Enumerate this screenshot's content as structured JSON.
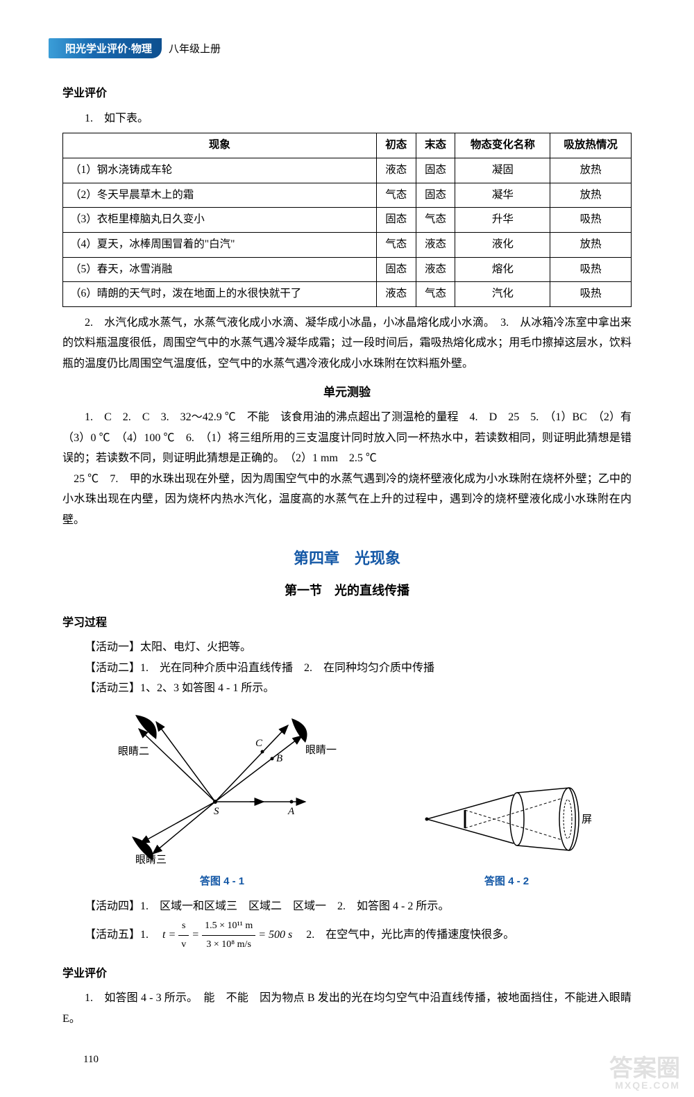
{
  "header": {
    "series": "阳光学业评价·物理",
    "grade": "八年级上册"
  },
  "evaluation_title": "学业评价",
  "table_intro": "1.　如下表。",
  "phenomena_table": {
    "columns": [
      "现象",
      "初态",
      "末态",
      "物态变化名称",
      "吸放热情况"
    ],
    "rows": [
      [
        "（1）钢水浇铸成车轮",
        "液态",
        "固态",
        "凝固",
        "放热"
      ],
      [
        "（2）冬天早晨草木上的霜",
        "气态",
        "固态",
        "凝华",
        "放热"
      ],
      [
        "（3）衣柜里樟脑丸日久变小",
        "固态",
        "气态",
        "升华",
        "吸热"
      ],
      [
        "（4）夏天，冰棒周围冒着的\"白汽\"",
        "气态",
        "液态",
        "液化",
        "放热"
      ],
      [
        "（5）春天，冰雪消融",
        "固态",
        "液态",
        "熔化",
        "吸热"
      ],
      [
        "（6）晴朗的天气时，泼在地面上的水很快就干了",
        "液态",
        "气态",
        "汽化",
        "吸热"
      ]
    ]
  },
  "para2": "2.　水汽化成水蒸气，水蒸气液化成小水滴、凝华成小冰晶，小冰晶熔化成小水滴。　3.　从冰箱冷冻室中拿出来的饮料瓶温度很低，周围空气中的水蒸气遇冷凝华成霜；过一段时间后，霜吸热熔化成水；用毛巾擦掉这层水，饮料瓶的温度仍比周围空气温度低，空气中的水蒸气遇冷液化成小水珠附在饮料瓶外壁。",
  "unit_test_title": "单元测验",
  "unit_test_p1": "1.　C　2.　C　3.　32～42.9 ℃　不能　该食用油的沸点超出了测温枪的量程　4.　D　25　5.　（1）BC　（2）有　（3）0 ℃　（4）100 ℃　6.　（1）将三组所用的三支温度计同时放入同一杯热水中，若读数相同，则证明此猜想是错误的；若读数不同，则证明此猜想是正确的。　（2）1 mm　2.5 ℃",
  "unit_test_p2": "　25 ℃　7.　甲的水珠出现在外壁，因为周围空气中的水蒸气遇到冷的烧杯壁液化成为小水珠附在烧杯外壁；乙中的小水珠出现在内壁，因为烧杯内热水汽化，温度高的水蒸气在上升的过程中，遇到冷的烧杯壁液化成小水珠附在内壁。",
  "chapter4": "第四章　光现象",
  "section4_1": "第一节　光的直线传播",
  "learning_title": "学习过程",
  "activity1": "【活动一】太阳、电灯、火把等。",
  "activity2": "【活动二】1.　光在同种介质中沿直线传播　2.　在同种均匀介质中传播",
  "activity3": "【活动三】1、2、3 如答图 4 - 1 所示。",
  "fig41_caption": "答图 4 - 1",
  "fig42_caption": "答图 4 - 2",
  "fig41_labels": {
    "eye1": "眼睛一",
    "eye2": "眼睛二",
    "eye3": "眼睛三",
    "S": "S",
    "A": "A",
    "B": "B",
    "C": "C"
  },
  "fig42_labels": {
    "screen": "屏"
  },
  "activity4": "【活动四】1.　区域一和区域三　区域二　区域一　2.　如答图 4 - 2 所示。",
  "activity5_prefix": "【活动五】1.　",
  "formula": {
    "lhs": "t = ",
    "frac1_num": "s",
    "frac1_den": "v",
    "eq": " = ",
    "frac2_num": "1.5 × 10¹¹ m",
    "frac2_den": "3 × 10⁸ m/s",
    "result": " = 500 s"
  },
  "activity5_suffix": "　2.　在空气中，光比声的传播速度快很多。",
  "evaluation2_title": "学业评价",
  "eval2_p1": "1.　如答图 4 - 3 所示。　能　不能　因为物点 B 发出的光在均匀空气中沿直线传播，被地面挡住，不能进入眼睛 E。",
  "page_number": "110",
  "watermark": {
    "big": "答案圈",
    "small": "MXQE.COM"
  },
  "colors": {
    "blue": "#1458a6",
    "tab_gradient_a": "#3b9ed8",
    "tab_gradient_b": "#0d4f8f"
  }
}
